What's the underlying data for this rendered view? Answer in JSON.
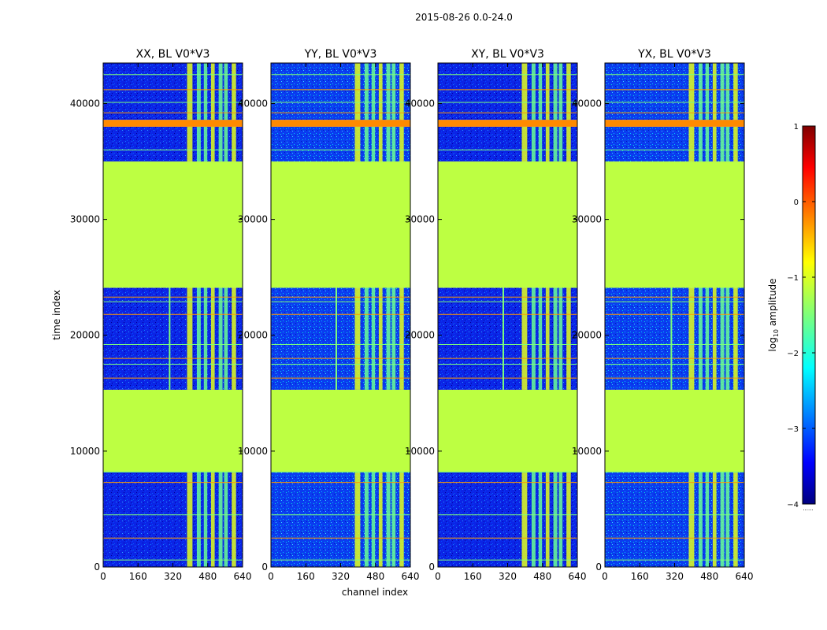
{
  "chart_data": {
    "type": "heatmap",
    "suptitle": "2015-08-26 0.0-24.0",
    "xlabel": "channel index",
    "ylabel": "time index",
    "xlim": [
      0,
      640
    ],
    "ylim": [
      0,
      43500
    ],
    "xticks": [
      "0",
      "160",
      "320",
      "480",
      "640"
    ],
    "yticks": [
      "0",
      "10000",
      "20000",
      "30000",
      "40000"
    ],
    "xtick_values": [
      0,
      160,
      320,
      480,
      640
    ],
    "ytick_values": [
      0,
      10000,
      20000,
      30000,
      40000
    ],
    "panels": [
      {
        "title": "XX, BL V0*V3",
        "spike_channel": 305
      },
      {
        "title": "YY, BL V0*V3",
        "spike_channel": 300
      },
      {
        "title": "XY, BL V0*V3",
        "spike_channel": 300
      },
      {
        "title": "YX, BL V0*V3",
        "spike_channel": 305
      }
    ],
    "segments": [
      {
        "from": 0,
        "to": 8200,
        "kind": "noise",
        "level": -3.3
      },
      {
        "from": 8200,
        "to": 15300,
        "kind": "flat",
        "level": -1.2
      },
      {
        "from": 15300,
        "to": 24100,
        "kind": "noise",
        "level": -3.2
      },
      {
        "from": 24100,
        "to": 35000,
        "kind": "flat",
        "level": -1.2
      },
      {
        "from": 35000,
        "to": 38000,
        "kind": "noise",
        "level": -2.8
      },
      {
        "from": 38000,
        "to": 38600,
        "kind": "flat",
        "level": -0.3
      },
      {
        "from": 38600,
        "to": 43500,
        "kind": "noise",
        "level": -2.6
      }
    ],
    "rfi_channel_bands": [
      [
        385,
        410
      ],
      [
        430,
        448
      ],
      [
        462,
        478
      ],
      [
        495,
        512
      ],
      [
        530,
        548
      ],
      [
        555,
        572
      ],
      [
        590,
        610
      ]
    ],
    "horizontal_lines": [
      600,
      2500,
      4500,
      7300,
      8200,
      16300,
      17500,
      18000,
      19200,
      21800,
      22900,
      23300,
      36000,
      39200,
      40100,
      41200,
      42500
    ],
    "colorbar": {
      "label": "log10 amplitude",
      "min": -4,
      "max": 1,
      "ticks": [
        "1",
        "0",
        "−1",
        "−2",
        "−3",
        "−4"
      ],
      "tick_values": [
        1,
        0,
        -1,
        -2,
        -3,
        -4
      ],
      "colormap": "jet",
      "extra_label": "......"
    }
  }
}
